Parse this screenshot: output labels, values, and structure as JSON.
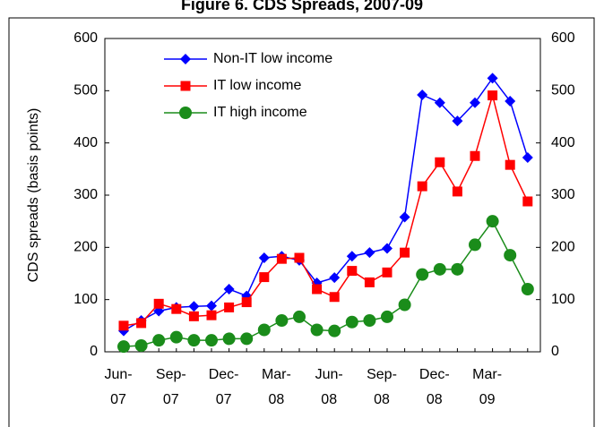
{
  "chart_data": {
    "type": "line",
    "title": "Figure 6. CDS Spreads, 2007-09",
    "y_label": "CDS spreads (basis points)",
    "categories": [
      "Jun-07",
      null,
      null,
      "Sep-07",
      null,
      null,
      "Dec-07",
      null,
      null,
      "Mar-08",
      null,
      null,
      "Jun-08",
      null,
      null,
      "Sep-08",
      null,
      null,
      "Dec-08",
      null,
      null,
      "Mar-09",
      null,
      null
    ],
    "series": [
      {
        "name": "Non-IT low  income",
        "color": "#0000ff",
        "marker": "diamond",
        "values": [
          40,
          60,
          78,
          85,
          87,
          88,
          120,
          107,
          180,
          183,
          175,
          132,
          142,
          183,
          190,
          198,
          258,
          492,
          477,
          442,
          477,
          524,
          480,
          372
        ]
      },
      {
        "name": "IT low  income",
        "color": "#ff0000",
        "marker": "square",
        "values": [
          50,
          55,
          92,
          82,
          68,
          70,
          85,
          95,
          143,
          178,
          180,
          120,
          105,
          155,
          133,
          152,
          190,
          317,
          363,
          307,
          375,
          491,
          358,
          288
        ]
      },
      {
        "name": "IT high income",
        "color": "#1a8c1a",
        "marker": "circle",
        "values": [
          10,
          12,
          22,
          28,
          22,
          22,
          25,
          25,
          42,
          60,
          67,
          42,
          40,
          57,
          60,
          67,
          90,
          148,
          158,
          158,
          205,
          250,
          185,
          120
        ]
      }
    ],
    "ylim": [
      0,
      600
    ],
    "yticks": [
      0,
      100,
      200,
      300,
      400,
      500,
      600
    ],
    "y2lim": [
      0,
      600
    ],
    "y2ticks": [
      0,
      100,
      200,
      300,
      400,
      500,
      600
    ],
    "legend": "upper left",
    "grid": false
  }
}
